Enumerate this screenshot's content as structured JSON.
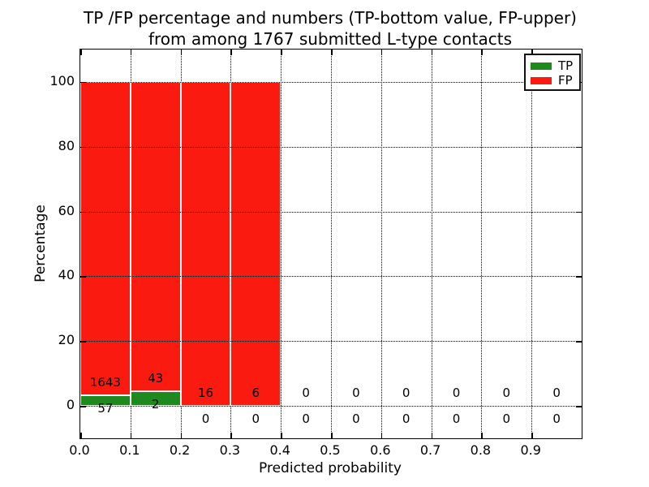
{
  "title_line1": "TP /FP percentage and numbers (TP-bottom value, FP-upper)",
  "title_line2": "from among 1767 submitted L-type contacts",
  "chart_data": {
    "type": "bar",
    "subtype": "stacked-percentage",
    "title": "TP /FP percentage and numbers (TP-bottom value, FP-upper) from among 1767 submitted L-type contacts",
    "xlabel": "Predicted probability",
    "ylabel": "Percentage",
    "bin_width": 0.1,
    "bin_starts": [
      0.0,
      0.1,
      0.2,
      0.3,
      0.4,
      0.5,
      0.6,
      0.7,
      0.8,
      0.9
    ],
    "series": [
      {
        "name": "TP",
        "color": "#1e8a1e",
        "counts": [
          57,
          2,
          0,
          0,
          0,
          0,
          0,
          0,
          0,
          0
        ]
      },
      {
        "name": "FP",
        "color": "#fa1a0f",
        "counts": [
          1643,
          43,
          16,
          6,
          0,
          0,
          0,
          0,
          0,
          0
        ]
      }
    ],
    "bar_heights_note": "bars show 100% stacked split of TP vs FP per bin; bins with zero total have no bar",
    "tp_percent_by_bin": [
      3.35,
      4.44,
      0,
      0,
      0,
      0,
      0,
      0,
      0,
      0
    ],
    "value_label_offsets_pct": {
      "fp": 4,
      "tp": -4
    },
    "xlim": [
      0.0,
      1.0
    ],
    "ylim": [
      -10,
      110
    ],
    "xticks": {
      "values": [
        0.0,
        0.1,
        0.2,
        0.3,
        0.4,
        0.5,
        0.6,
        0.7,
        0.8,
        0.9
      ],
      "labels": [
        "0.0",
        "0.1",
        "0.2",
        "0.3",
        "0.4",
        "0.5",
        "0.6",
        "0.7",
        "0.8",
        "0.9"
      ]
    },
    "yticks": {
      "values": [
        0,
        20,
        40,
        60,
        80,
        100
      ],
      "labels": [
        "0",
        "20",
        "40",
        "60",
        "80",
        "100"
      ]
    },
    "grid": "dotted-black-both-axes",
    "legend": {
      "position": "upper-right",
      "entries": [
        "TP",
        "FP"
      ]
    }
  }
}
